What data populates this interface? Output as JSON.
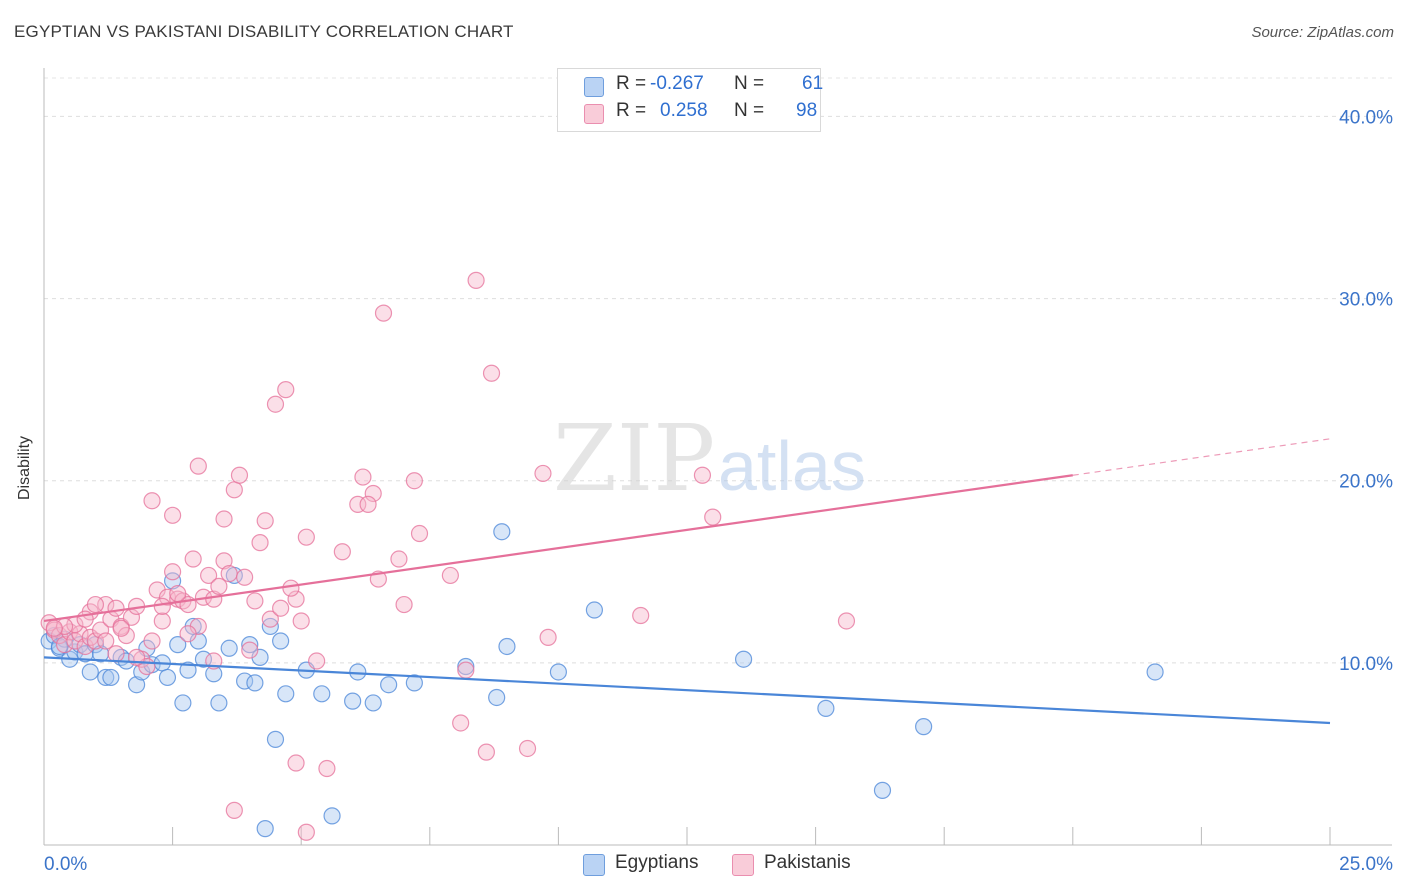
{
  "header": {
    "title": "EGYPTIAN VS PAKISTANI DISABILITY CORRELATION CHART",
    "source": "Source: ZipAtlas.com"
  },
  "legend": {
    "rows": [
      {
        "r_label": "R =",
        "r_value": "-0.267",
        "n_label": "N =",
        "n_value": "61",
        "color": "#a9c8f0"
      },
      {
        "r_label": "R =",
        "r_value": "0.258",
        "n_label": "N =",
        "n_value": "98",
        "color": "#f6b9cb"
      }
    ]
  },
  "bottom_legend": [
    {
      "label": "Egyptians",
      "color": "#a9c8f0"
    },
    {
      "label": "Pakistanis",
      "color": "#f6b9cb"
    }
  ],
  "chart_data": {
    "type": "scatter",
    "title": "EGYPTIAN VS PAKISTANI DISABILITY CORRELATION CHART",
    "xlabel": "",
    "ylabel": "Disability",
    "xlim": [
      0,
      25
    ],
    "ylim": [
      0,
      42
    ],
    "x_tick_labels": [
      "0.0%",
      "25.0%"
    ],
    "y_ticks": [
      10,
      20,
      30,
      40
    ],
    "y_tick_labels": [
      "10.0%",
      "20.0%",
      "30.0%",
      "40.0%"
    ],
    "grid": true,
    "legend_position": "top-center",
    "watermark": {
      "zip": "ZIP",
      "atlas": "atlas"
    },
    "series": [
      {
        "name": "Egyptians",
        "color": "#4a86d8",
        "fill": "#a9c8f0",
        "trend": {
          "x0": 0,
          "y0": 10.3,
          "x1": 25,
          "y1": 6.7,
          "dashed_from": null
        },
        "points": [
          [
            0.1,
            11.2
          ],
          [
            0.2,
            11.5
          ],
          [
            0.3,
            10.8
          ],
          [
            0.4,
            11.3
          ],
          [
            0.5,
            10.2
          ],
          [
            0.6,
            10.6
          ],
          [
            0.7,
            11.0
          ],
          [
            0.8,
            10.5
          ],
          [
            0.9,
            9.5
          ],
          [
            1.0,
            11.0
          ],
          [
            1.1,
            10.5
          ],
          [
            1.2,
            9.2
          ],
          [
            1.3,
            9.2
          ],
          [
            1.5,
            10.3
          ],
          [
            1.6,
            10.1
          ],
          [
            1.8,
            8.8
          ],
          [
            1.9,
            9.5
          ],
          [
            2.0,
            10.8
          ],
          [
            2.1,
            9.9
          ],
          [
            2.3,
            10.0
          ],
          [
            2.4,
            9.2
          ],
          [
            2.5,
            14.5
          ],
          [
            2.6,
            11.0
          ],
          [
            2.7,
            7.8
          ],
          [
            2.8,
            9.6
          ],
          [
            2.9,
            12.0
          ],
          [
            3.0,
            11.2
          ],
          [
            3.1,
            10.2
          ],
          [
            3.3,
            9.4
          ],
          [
            3.4,
            7.8
          ],
          [
            3.6,
            10.8
          ],
          [
            3.7,
            14.8
          ],
          [
            3.9,
            9.0
          ],
          [
            4.0,
            11.0
          ],
          [
            4.1,
            8.9
          ],
          [
            4.2,
            10.3
          ],
          [
            4.3,
            0.9
          ],
          [
            4.4,
            12.0
          ],
          [
            4.6,
            11.2
          ],
          [
            4.7,
            8.3
          ],
          [
            4.5,
            5.8
          ],
          [
            5.1,
            9.6
          ],
          [
            5.4,
            8.3
          ],
          [
            5.6,
            1.6
          ],
          [
            6.0,
            7.9
          ],
          [
            6.1,
            9.5
          ],
          [
            6.4,
            7.8
          ],
          [
            6.7,
            8.8
          ],
          [
            7.2,
            8.9
          ],
          [
            8.2,
            9.8
          ],
          [
            8.9,
            17.2
          ],
          [
            8.8,
            8.1
          ],
          [
            9.0,
            10.9
          ],
          [
            10.0,
            9.5
          ],
          [
            10.7,
            12.9
          ],
          [
            13.6,
            10.2
          ],
          [
            15.2,
            7.5
          ],
          [
            16.3,
            3.0
          ],
          [
            17.1,
            6.5
          ],
          [
            21.6,
            9.5
          ],
          [
            0.3,
            10.9
          ]
        ]
      },
      {
        "name": "Pakistanis",
        "color": "#e5709a",
        "fill": "#f6b9cb",
        "trend": {
          "x0": 0,
          "y0": 12.3,
          "x1": 20.0,
          "y1": 20.3,
          "dashed_to_x": 25,
          "dashed_to_y": 22.3
        },
        "points": [
          [
            0.1,
            12.2
          ],
          [
            0.2,
            11.8
          ],
          [
            0.3,
            11.5
          ],
          [
            0.4,
            11.0
          ],
          [
            0.5,
            11.7
          ],
          [
            0.6,
            11.2
          ],
          [
            0.7,
            11.6
          ],
          [
            0.8,
            10.9
          ],
          [
            0.9,
            11.4
          ],
          [
            1.0,
            11.2
          ],
          [
            1.1,
            11.8
          ],
          [
            1.2,
            13.2
          ],
          [
            1.3,
            12.4
          ],
          [
            1.4,
            13.0
          ],
          [
            1.5,
            12.0
          ],
          [
            1.6,
            11.5
          ],
          [
            1.7,
            12.5
          ],
          [
            1.8,
            13.1
          ],
          [
            1.9,
            10.2
          ],
          [
            2.0,
            9.8
          ],
          [
            2.1,
            11.2
          ],
          [
            2.2,
            14.0
          ],
          [
            2.3,
            12.3
          ],
          [
            2.4,
            13.6
          ],
          [
            2.5,
            15.0
          ],
          [
            2.6,
            13.5
          ],
          [
            2.7,
            13.4
          ],
          [
            2.8,
            13.2
          ],
          [
            2.9,
            15.7
          ],
          [
            3.0,
            12.0
          ],
          [
            3.1,
            13.6
          ],
          [
            3.2,
            14.8
          ],
          [
            3.3,
            13.5
          ],
          [
            3.4,
            14.2
          ],
          [
            3.5,
            15.6
          ],
          [
            3.6,
            14.9
          ],
          [
            3.7,
            19.5
          ],
          [
            3.8,
            20.3
          ],
          [
            3.9,
            14.7
          ],
          [
            4.0,
            10.7
          ],
          [
            4.1,
            13.4
          ],
          [
            4.2,
            16.6
          ],
          [
            4.3,
            17.8
          ],
          [
            4.4,
            12.4
          ],
          [
            4.5,
            24.2
          ],
          [
            4.6,
            13.0
          ],
          [
            4.7,
            25.0
          ],
          [
            4.9,
            13.5
          ],
          [
            5.0,
            12.3
          ],
          [
            5.1,
            16.9
          ],
          [
            5.3,
            10.1
          ],
          [
            5.5,
            4.2
          ],
          [
            5.8,
            16.1
          ],
          [
            6.1,
            18.7
          ],
          [
            6.2,
            20.2
          ],
          [
            6.4,
            19.3
          ],
          [
            6.5,
            14.6
          ],
          [
            6.6,
            29.2
          ],
          [
            6.9,
            15.7
          ],
          [
            7.2,
            20.0
          ],
          [
            7.3,
            17.1
          ],
          [
            7.9,
            14.8
          ],
          [
            8.1,
            6.7
          ],
          [
            8.2,
            9.6
          ],
          [
            8.4,
            31.0
          ],
          [
            8.6,
            5.1
          ],
          [
            8.7,
            25.9
          ],
          [
            9.4,
            5.3
          ],
          [
            9.7,
            20.4
          ],
          [
            9.8,
            11.4
          ],
          [
            11.6,
            12.6
          ],
          [
            12.8,
            20.3
          ],
          [
            13.0,
            18.0
          ],
          [
            15.6,
            12.3
          ],
          [
            2.1,
            18.9
          ],
          [
            2.5,
            18.1
          ],
          [
            3.0,
            20.8
          ],
          [
            3.5,
            17.9
          ],
          [
            4.9,
            4.5
          ],
          [
            3.7,
            1.9
          ],
          [
            5.1,
            0.7
          ],
          [
            1.5,
            11.9
          ],
          [
            0.9,
            12.8
          ],
          [
            1.2,
            11.2
          ],
          [
            2.8,
            11.6
          ],
          [
            0.6,
            12.1
          ],
          [
            0.4,
            12.0
          ],
          [
            0.2,
            11.9
          ],
          [
            1.4,
            10.5
          ],
          [
            1.8,
            10.3
          ],
          [
            2.6,
            13.8
          ],
          [
            3.3,
            10.1
          ],
          [
            4.8,
            14.1
          ],
          [
            6.3,
            18.7
          ],
          [
            1.0,
            13.2
          ],
          [
            0.8,
            12.4
          ],
          [
            7.0,
            13.2
          ],
          [
            2.3,
            13.1
          ]
        ]
      }
    ]
  }
}
